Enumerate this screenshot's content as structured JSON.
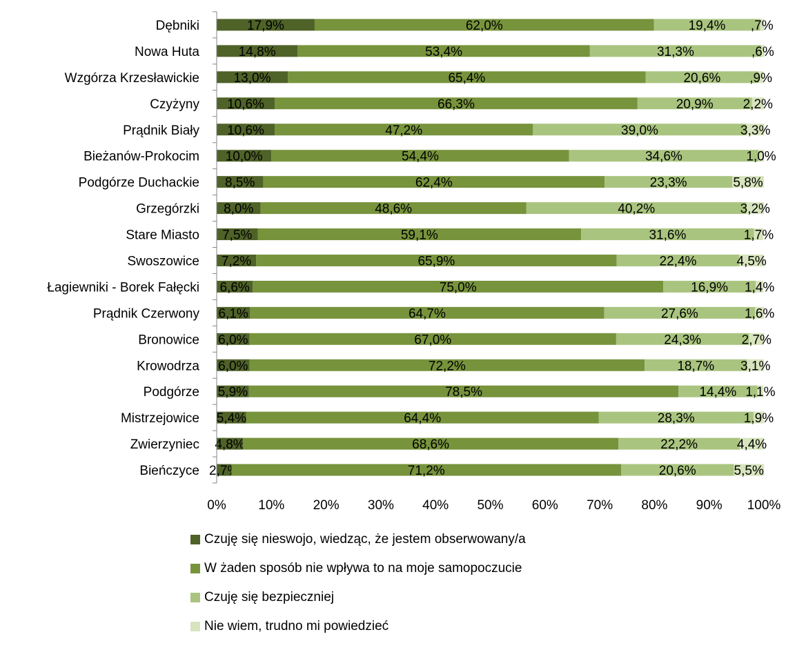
{
  "chart_data": {
    "type": "bar",
    "orientation": "horizontal",
    "stacked": "percent",
    "categories": [
      "Dębniki",
      "Nowa Huta",
      "Wzgórza Krzesławickie",
      "Czyżyny",
      "Prądnik Biały",
      "Bieżanów-Prokocim",
      "Podgórze Duchackie",
      "Grzegórzki",
      "Stare Miasto",
      "Swoszowice",
      "Łagiewniki - Borek Fałęcki",
      "Prądnik Czerwony",
      "Bronowice",
      "Krowodrza",
      "Podgórze",
      "Mistrzejowice",
      "Zwierzyniec",
      "Bieńczyce"
    ],
    "series": [
      {
        "name": "Czuję się nieswojo, wiedząc, że jestem obserwowany/a",
        "color": "#4f6228",
        "values": [
          17.9,
          14.8,
          13.0,
          10.6,
          10.6,
          10.0,
          8.5,
          8.0,
          7.5,
          7.2,
          6.6,
          6.1,
          6.0,
          6.0,
          5.9,
          5.4,
          4.8,
          2.7
        ],
        "labels": [
          "17,9%",
          "14,8%",
          "13,0%",
          "10,6%",
          "10,6%",
          "10,0%",
          "8,5%",
          "8,0%",
          "7,5%",
          "7,2%",
          "6,6%",
          "6,1%",
          "6,0%",
          "6,0%",
          "5,9%",
          "5,4%",
          "4,8%",
          "2,7%"
        ]
      },
      {
        "name": "W żaden sposób nie wpływa to na moje samopoczucie",
        "color": "#77933c",
        "values": [
          62.0,
          53.4,
          65.4,
          66.3,
          47.2,
          54.4,
          62.4,
          48.6,
          59.1,
          65.9,
          75.0,
          64.7,
          67.0,
          72.2,
          78.5,
          64.4,
          68.6,
          71.2
        ],
        "labels": [
          "62,0%",
          "53,4%",
          "65,4%",
          "66,3%",
          "47,2%",
          "54,4%",
          "62,4%",
          "48,6%",
          "59,1%",
          "65,9%",
          "75,0%",
          "64,7%",
          "67,0%",
          "72,2%",
          "78,5%",
          "64,4%",
          "68,6%",
          "71,2%"
        ]
      },
      {
        "name": "Czuję się bezpieczniej",
        "color": "#a9c47f",
        "values": [
          19.4,
          31.3,
          20.6,
          20.9,
          39.0,
          34.6,
          23.3,
          40.2,
          31.6,
          22.4,
          16.9,
          27.6,
          24.3,
          18.7,
          14.4,
          28.3,
          22.2,
          20.6
        ],
        "labels": [
          "19,4%",
          "31,3%",
          "20,6%",
          "20,9%",
          "39,0%",
          "34,6%",
          "23,3%",
          "40,2%",
          "31,6%",
          "22,4%",
          "16,9%",
          "27,6%",
          "24,3%",
          "18,7%",
          "14,4%",
          "28,3%",
          "22,2%",
          "20,6%"
        ]
      },
      {
        "name": "Nie wiem, trudno mi powiedzieć",
        "color": "#d7e4bd",
        "values": [
          0.7,
          0.6,
          0.9,
          2.2,
          3.3,
          1.0,
          5.8,
          3.2,
          1.7,
          4.5,
          1.4,
          1.6,
          2.7,
          3.1,
          1.1,
          1.9,
          4.4,
          5.5
        ],
        "labels": [
          ",7%",
          ",6%",
          ",9%",
          "2,2%",
          "3,3%",
          "1,0%",
          "5,8%",
          "3,2%",
          "1,7%",
          "4,5%",
          "1,4%",
          "1,6%",
          "2,7%",
          "3,1%",
          "1,1%",
          "1,9%",
          "4,4%",
          "5,5%"
        ]
      }
    ],
    "xlim": [
      0,
      100
    ],
    "xticks": [
      "0%",
      "10%",
      "20%",
      "30%",
      "40%",
      "50%",
      "60%",
      "70%",
      "80%",
      "90%",
      "100%"
    ],
    "title": "",
    "xlabel": "",
    "ylabel": "",
    "grid": false,
    "legend_position": "bottom"
  }
}
